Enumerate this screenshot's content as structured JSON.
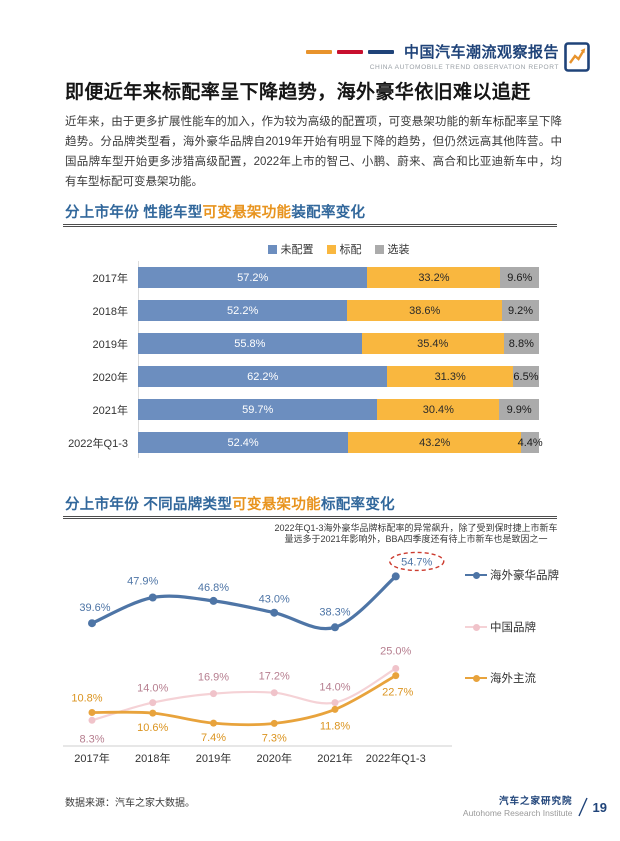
{
  "header": {
    "brand_title": "中国汽车潮流观察报告",
    "brand_subtitle": "CHINA AUTOMOBILE TREND OBSERVATION REPORT",
    "dash_colors": [
      "#E8932C",
      "#C8102E",
      "#1F4379"
    ],
    "brand_color": "#1F4379",
    "icon_accent": "#E8932C"
  },
  "page_title": "即便近年来标配率呈下降趋势，海外豪华依旧难以追赶",
  "intro_paragraph": "近年来，由于更多扩展性能车的加入，作为较为高级的配置项，可变悬架功能的新车标配率呈下降趋势。分品牌类型看，海外豪华品牌自2019年开始有明显下降的趋势，但仍然远高其他阵营。中国品牌车型开始更多涉猎高级配置，2022年上市的智己、小鹏、蔚来、高合和比亚迪新车中，均有车型标配可变悬架功能。",
  "section1": {
    "title_prefix": "分上市年份 性能车型",
    "title_highlight": "可变悬架功能",
    "title_suffix": "装配率变化"
  },
  "section2": {
    "title_prefix": "分上市年份 不同品牌类型",
    "title_highlight": "可变悬架功能",
    "title_suffix": "标配率变化"
  },
  "annotation": {
    "line1": "2022年Q1-3海外豪华品牌标配率的异常飙升，除了受到保时捷上市新车",
    "line2": "量远多于2021年影响外，BBA四季度还有待上市新车也是致因之一"
  },
  "chart_data": [
    {
      "type": "bar",
      "subtype": "horizontal-stacked",
      "title": "分上市年份 性能车型可变悬架功能装配率变化",
      "categories": [
        "2017年",
        "2018年",
        "2019年",
        "2020年",
        "2021年",
        "2022年Q1-3"
      ],
      "series": [
        {
          "name": "未配置",
          "color": "#6C8EBF",
          "label_color": "#ffffff",
          "values": [
            57.2,
            52.2,
            55.8,
            62.2,
            59.7,
            52.4
          ]
        },
        {
          "name": "标配",
          "color": "#F9B73F",
          "label_color": "#2b2b2b",
          "values": [
            33.2,
            38.6,
            35.4,
            31.3,
            30.4,
            43.2
          ]
        },
        {
          "name": "选装",
          "color": "#ABABAB",
          "label_color": "#1a1a1a",
          "values": [
            9.6,
            9.2,
            8.8,
            6.5,
            9.9,
            4.4
          ]
        }
      ],
      "value_suffix": "%",
      "xlim": [
        0,
        100
      ],
      "legend_position": "top",
      "grid": false
    },
    {
      "type": "line",
      "title": "分上市年份 不同品牌类型可变悬架功能标配率变化",
      "x": [
        "2017年",
        "2018年",
        "2019年",
        "2020年",
        "2021年",
        "2022年Q1-3"
      ],
      "series": [
        {
          "name": "海外豪华品牌",
          "color": "#4E75A6",
          "dot_color": "#4E75A6",
          "label_color": "#4E75A6",
          "values": [
            39.6,
            47.9,
            46.8,
            43.0,
            38.3,
            54.7
          ]
        },
        {
          "name": "中国品牌",
          "color": "#F5D2D6",
          "dot_color": "#F0C3CA",
          "label_color": "#B67E8F",
          "values": [
            8.3,
            14.0,
            16.9,
            17.2,
            14.0,
            25.0
          ]
        },
        {
          "name": "海外主流",
          "color": "#E8A33C",
          "dot_color": "#E8A33C",
          "label_color": "#DB9420",
          "values": [
            10.8,
            10.6,
            7.4,
            7.3,
            11.8,
            22.7
          ]
        }
      ],
      "value_suffix": "%",
      "ylim": [
        0,
        63
      ],
      "legend_position": "right",
      "grid": false,
      "highlight": {
        "series": "海外豪华品牌",
        "x": "2022年Q1-3",
        "value": 54.7,
        "style": "red-dashed-ellipse",
        "color": "#CC3B2F"
      }
    }
  ],
  "footer": {
    "source": "数据来源：汽车之家大数据。",
    "org_cn": "汽车之家研究院",
    "org_en": "Autohome Research Institute",
    "page_number": "19"
  }
}
